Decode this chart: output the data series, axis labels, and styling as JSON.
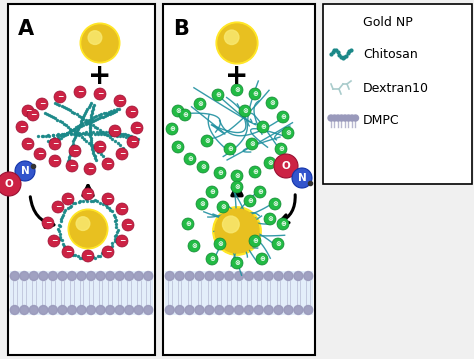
{
  "bg_color": "#f0f0f0",
  "panel_bg": "#ffffff",
  "gold_color": "#E8C020",
  "gold_highlight": "#F8E870",
  "gold_shadow": "#A07810",
  "chitosan_color": "#1A8888",
  "dextran_line_color": "#2090A0",
  "dextran_charge_color": "#22BB44",
  "neg_charge_color": "#CC2244",
  "arrow_color": "#111111",
  "membrane_head_color": "#9999BB",
  "membrane_tail_color": "#D8E8F8",
  "no_color": "#CC2244",
  "n_color": "#3355CC",
  "legend_items": [
    "Gold NP",
    "Chitosan",
    "Dextran10",
    "DMPC"
  ]
}
